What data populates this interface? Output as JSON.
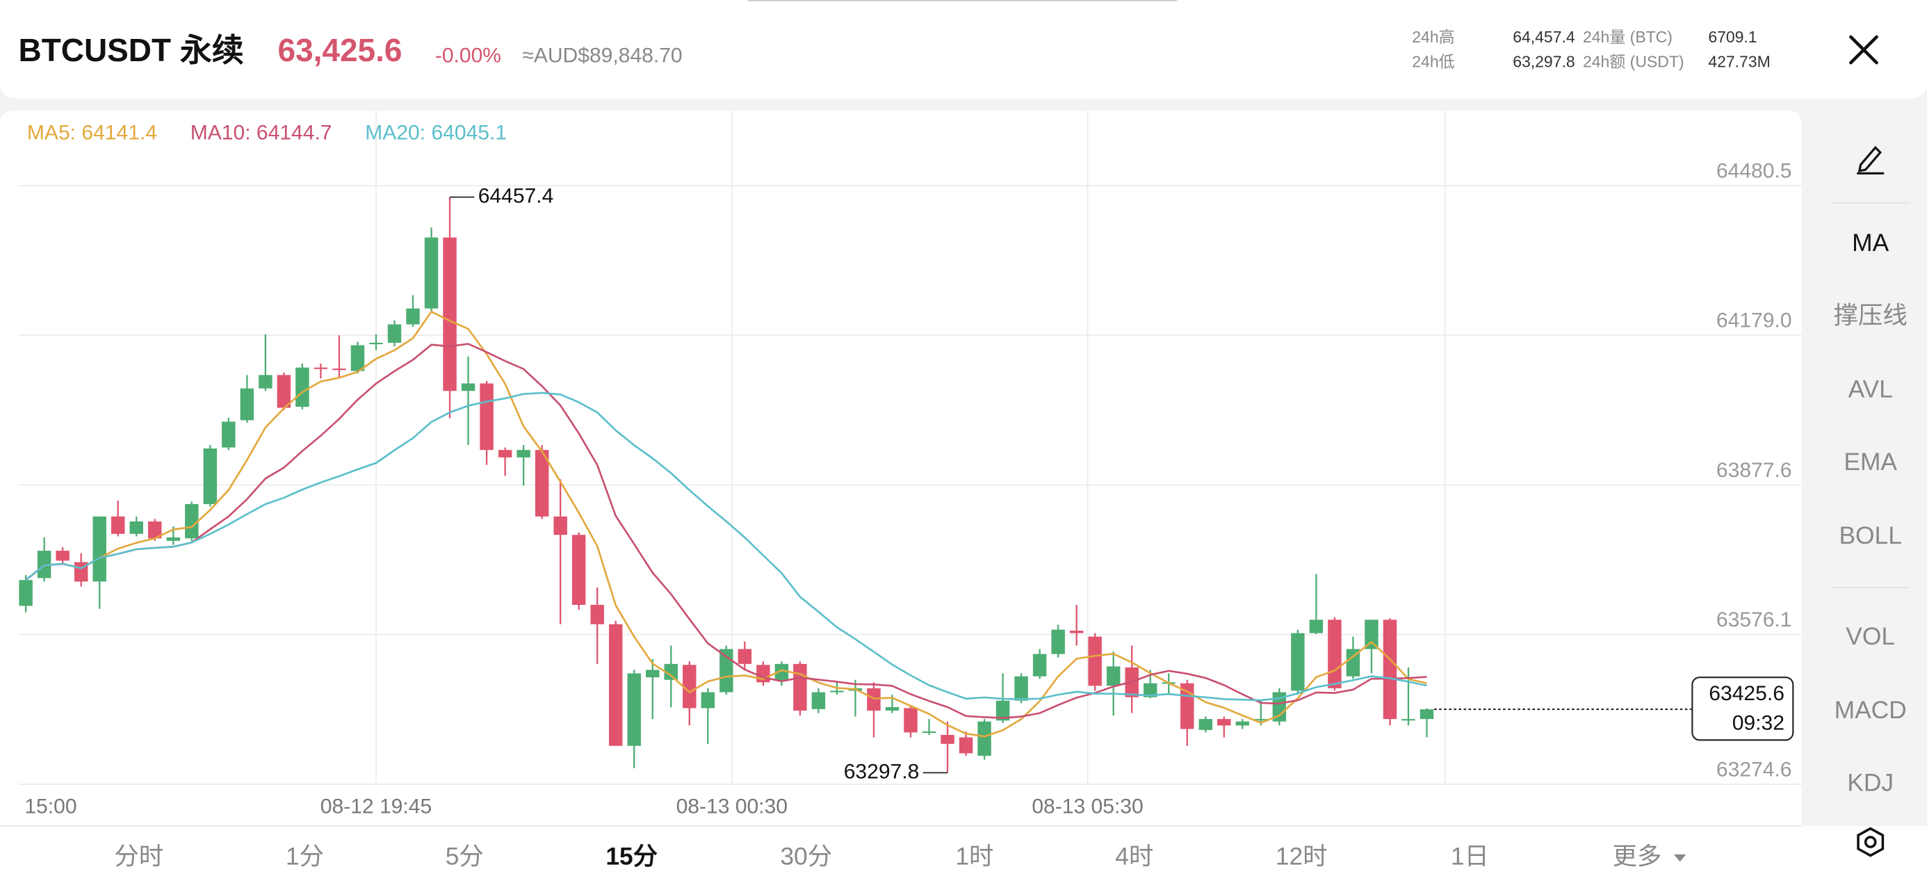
{
  "header": {
    "symbol": "BTCUSDT 永续",
    "price": "63,425.6",
    "change": "-0.00%",
    "fiat": "≈AUD$89,848.70",
    "stats": [
      {
        "label": "24h高",
        "value": "64,457.4"
      },
      {
        "label": "24h低",
        "value": "63,297.8"
      },
      {
        "label": "24h量 (BTC)",
        "value": "6709.1"
      },
      {
        "label": "24h额 (USDT)",
        "value": "427.73M"
      }
    ]
  },
  "chart_data": {
    "type": "candlestick",
    "up_color": "#4cad72",
    "down_color": "#e0546e",
    "ma_legend": [
      {
        "text": "MA5: 64141.4",
        "color": "#e3a83c"
      },
      {
        "text": "MA10: 64144.7",
        "color": "#c9506f"
      },
      {
        "text": "MA20: 64045.1",
        "color": "#5bbfcb"
      }
    ],
    "ylim": [
      63274.6,
      64480.5
    ],
    "yticks": [
      64480.5,
      {
        "value": 64179,
        "label": "64179.0"
      },
      63877.6,
      63576.1,
      63274.6
    ],
    "xticks": [
      {
        "value": 0,
        "label": "15:00"
      },
      {
        "value": 19,
        "label": "08-12 19:45"
      },
      {
        "value": 38.3,
        "label": "08-13 00:30"
      },
      {
        "value": 57.6,
        "label": "08-13 05:30"
      }
    ],
    "xgrid": [
      19,
      38.3,
      57.6,
      77
    ],
    "grid": true,
    "annotations": [
      {
        "value": 64457.4,
        "index": 23
      },
      {
        "value": 63297.8,
        "index": 50
      }
    ],
    "last_price": 63425.6,
    "last_time": "09:32",
    "candles": [
      {
        "open": 63634,
        "high": 63696,
        "low": 63621,
        "close": 63686
      },
      {
        "open": 63690,
        "high": 63772,
        "low": 63683,
        "close": 63745
      },
      {
        "open": 63745,
        "high": 63752,
        "low": 63720,
        "close": 63725
      },
      {
        "open": 63722,
        "high": 63740,
        "low": 63673,
        "close": 63683
      },
      {
        "open": 63683,
        "high": 63814,
        "low": 63628,
        "close": 63814
      },
      {
        "open": 63814,
        "high": 63846,
        "low": 63774,
        "close": 63779
      },
      {
        "open": 63779,
        "high": 63814,
        "low": 63774,
        "close": 63804
      },
      {
        "open": 63804,
        "high": 63809,
        "low": 63765,
        "close": 63770
      },
      {
        "open": 63765,
        "high": 63794,
        "low": 63757,
        "close": 63772
      },
      {
        "open": 63770,
        "high": 63844,
        "low": 63765,
        "close": 63839
      },
      {
        "open": 63839,
        "high": 63958,
        "low": 63834,
        "close": 63951
      },
      {
        "open": 63953,
        "high": 64013,
        "low": 63948,
        "close": 64005
      },
      {
        "open": 64008,
        "high": 64099,
        "low": 64003,
        "close": 64072
      },
      {
        "open": 64072,
        "high": 64181,
        "low": 64067,
        "close": 64099
      },
      {
        "open": 64099,
        "high": 64104,
        "low": 64028,
        "close": 64033
      },
      {
        "open": 64035,
        "high": 64122,
        "low": 64030,
        "close": 64114
      },
      {
        "open": 64114,
        "high": 64122,
        "low": 64092,
        "close": 64112
      },
      {
        "open": 64112,
        "high": 64179,
        "low": 64092,
        "close": 64109
      },
      {
        "open": 64107,
        "high": 64166,
        "low": 64102,
        "close": 64159
      },
      {
        "open": 64162,
        "high": 64181,
        "low": 64149,
        "close": 64164
      },
      {
        "open": 64164,
        "high": 64209,
        "low": 64157,
        "close": 64201
      },
      {
        "open": 64201,
        "high": 64260,
        "low": 64196,
        "close": 64233
      },
      {
        "open": 64233,
        "high": 64396,
        "low": 64228,
        "close": 64376
      },
      {
        "open": 64376,
        "high": 64457.4,
        "low": 64012,
        "close": 64067
      },
      {
        "open": 64067,
        "high": 64136,
        "low": 63958,
        "close": 64082
      },
      {
        "open": 64082,
        "high": 64087,
        "low": 63918,
        "close": 63948
      },
      {
        "open": 63948,
        "high": 63953,
        "low": 63896,
        "close": 63933
      },
      {
        "open": 63933,
        "high": 63958,
        "low": 63876,
        "close": 63948
      },
      {
        "open": 63948,
        "high": 63958,
        "low": 63809,
        "close": 63814
      },
      {
        "open": 63814,
        "high": 63889,
        "low": 63597,
        "close": 63777
      },
      {
        "open": 63777,
        "high": 63782,
        "low": 63626,
        "close": 63636
      },
      {
        "open": 63636,
        "high": 63671,
        "low": 63517,
        "close": 63597
      },
      {
        "open": 63597,
        "high": 63604,
        "low": 63352,
        "close": 63352
      },
      {
        "open": 63352,
        "high": 63505,
        "low": 63307,
        "close": 63498
      },
      {
        "open": 63490,
        "high": 63527,
        "low": 63406,
        "close": 63505
      },
      {
        "open": 63485,
        "high": 63554,
        "low": 63430,
        "close": 63517
      },
      {
        "open": 63515,
        "high": 63522,
        "low": 63393,
        "close": 63428
      },
      {
        "open": 63428,
        "high": 63468,
        "low": 63356,
        "close": 63460
      },
      {
        "open": 63460,
        "high": 63554,
        "low": 63455,
        "close": 63547
      },
      {
        "open": 63547,
        "high": 63562,
        "low": 63505,
        "close": 63517
      },
      {
        "open": 63515,
        "high": 63522,
        "low": 63473,
        "close": 63480
      },
      {
        "open": 63483,
        "high": 63522,
        "low": 63473,
        "close": 63517
      },
      {
        "open": 63517,
        "high": 63522,
        "low": 63413,
        "close": 63423
      },
      {
        "open": 63426,
        "high": 63468,
        "low": 63418,
        "close": 63460
      },
      {
        "open": 63460,
        "high": 63480,
        "low": 63455,
        "close": 63463
      },
      {
        "open": 63463,
        "high": 63485,
        "low": 63411,
        "close": 63468
      },
      {
        "open": 63468,
        "high": 63480,
        "low": 63369,
        "close": 63423
      },
      {
        "open": 63423,
        "high": 63455,
        "low": 63418,
        "close": 63430
      },
      {
        "open": 63428,
        "high": 63433,
        "low": 63369,
        "close": 63379
      },
      {
        "open": 63379,
        "high": 63406,
        "low": 63374,
        "close": 63381
      },
      {
        "open": 63374,
        "high": 63401,
        "low": 63297.8,
        "close": 63356
      },
      {
        "open": 63369,
        "high": 63381,
        "low": 63332,
        "close": 63337
      },
      {
        "open": 63332,
        "high": 63406,
        "low": 63324,
        "close": 63401
      },
      {
        "open": 63403,
        "high": 63498,
        "low": 63398,
        "close": 63443
      },
      {
        "open": 63443,
        "high": 63498,
        "low": 63438,
        "close": 63492
      },
      {
        "open": 63492,
        "high": 63547,
        "low": 63487,
        "close": 63537
      },
      {
        "open": 63537,
        "high": 63596,
        "low": 63530,
        "close": 63586
      },
      {
        "open": 63584,
        "high": 63636,
        "low": 63554,
        "close": 63579
      },
      {
        "open": 63572,
        "high": 63579,
        "low": 63463,
        "close": 63473
      },
      {
        "open": 63473,
        "high": 63542,
        "low": 63413,
        "close": 63512
      },
      {
        "open": 63510,
        "high": 63554,
        "low": 63418,
        "close": 63450
      },
      {
        "open": 63450,
        "high": 63505,
        "low": 63448,
        "close": 63478
      },
      {
        "open": 63478,
        "high": 63498,
        "low": 63455,
        "close": 63480
      },
      {
        "open": 63478,
        "high": 63485,
        "low": 63352,
        "close": 63386
      },
      {
        "open": 63384,
        "high": 63411,
        "low": 63379,
        "close": 63406
      },
      {
        "open": 63406,
        "high": 63411,
        "low": 63369,
        "close": 63393
      },
      {
        "open": 63393,
        "high": 63406,
        "low": 63386,
        "close": 63401
      },
      {
        "open": 63403,
        "high": 63443,
        "low": 63393,
        "close": 63406
      },
      {
        "open": 63401,
        "high": 63468,
        "low": 63393,
        "close": 63460
      },
      {
        "open": 63463,
        "high": 63586,
        "low": 63455,
        "close": 63579
      },
      {
        "open": 63579,
        "high": 63698,
        "low": 63577,
        "close": 63606
      },
      {
        "open": 63606,
        "high": 63611,
        "low": 63463,
        "close": 63468
      },
      {
        "open": 63492,
        "high": 63572,
        "low": 63487,
        "close": 63547
      },
      {
        "open": 63547,
        "high": 63606,
        "low": 63498,
        "close": 63606
      },
      {
        "open": 63606,
        "high": 63609,
        "low": 63393,
        "close": 63406
      },
      {
        "open": 63403,
        "high": 63510,
        "low": 63393,
        "close": 63406
      },
      {
        "open": 63406,
        "high": 63428,
        "low": 63369,
        "close": 63425.6
      }
    ]
  },
  "sidebar": [
    "MA",
    "撑压线",
    "AVL",
    "EMA",
    "BOLL",
    "VOL",
    "MACD",
    "KDJ"
  ],
  "timeframes": [
    "分时",
    "1分",
    "5分",
    "15分",
    "30分",
    "1时",
    "4时",
    "12时",
    "1日",
    "更多"
  ],
  "active_timeframe": 3
}
